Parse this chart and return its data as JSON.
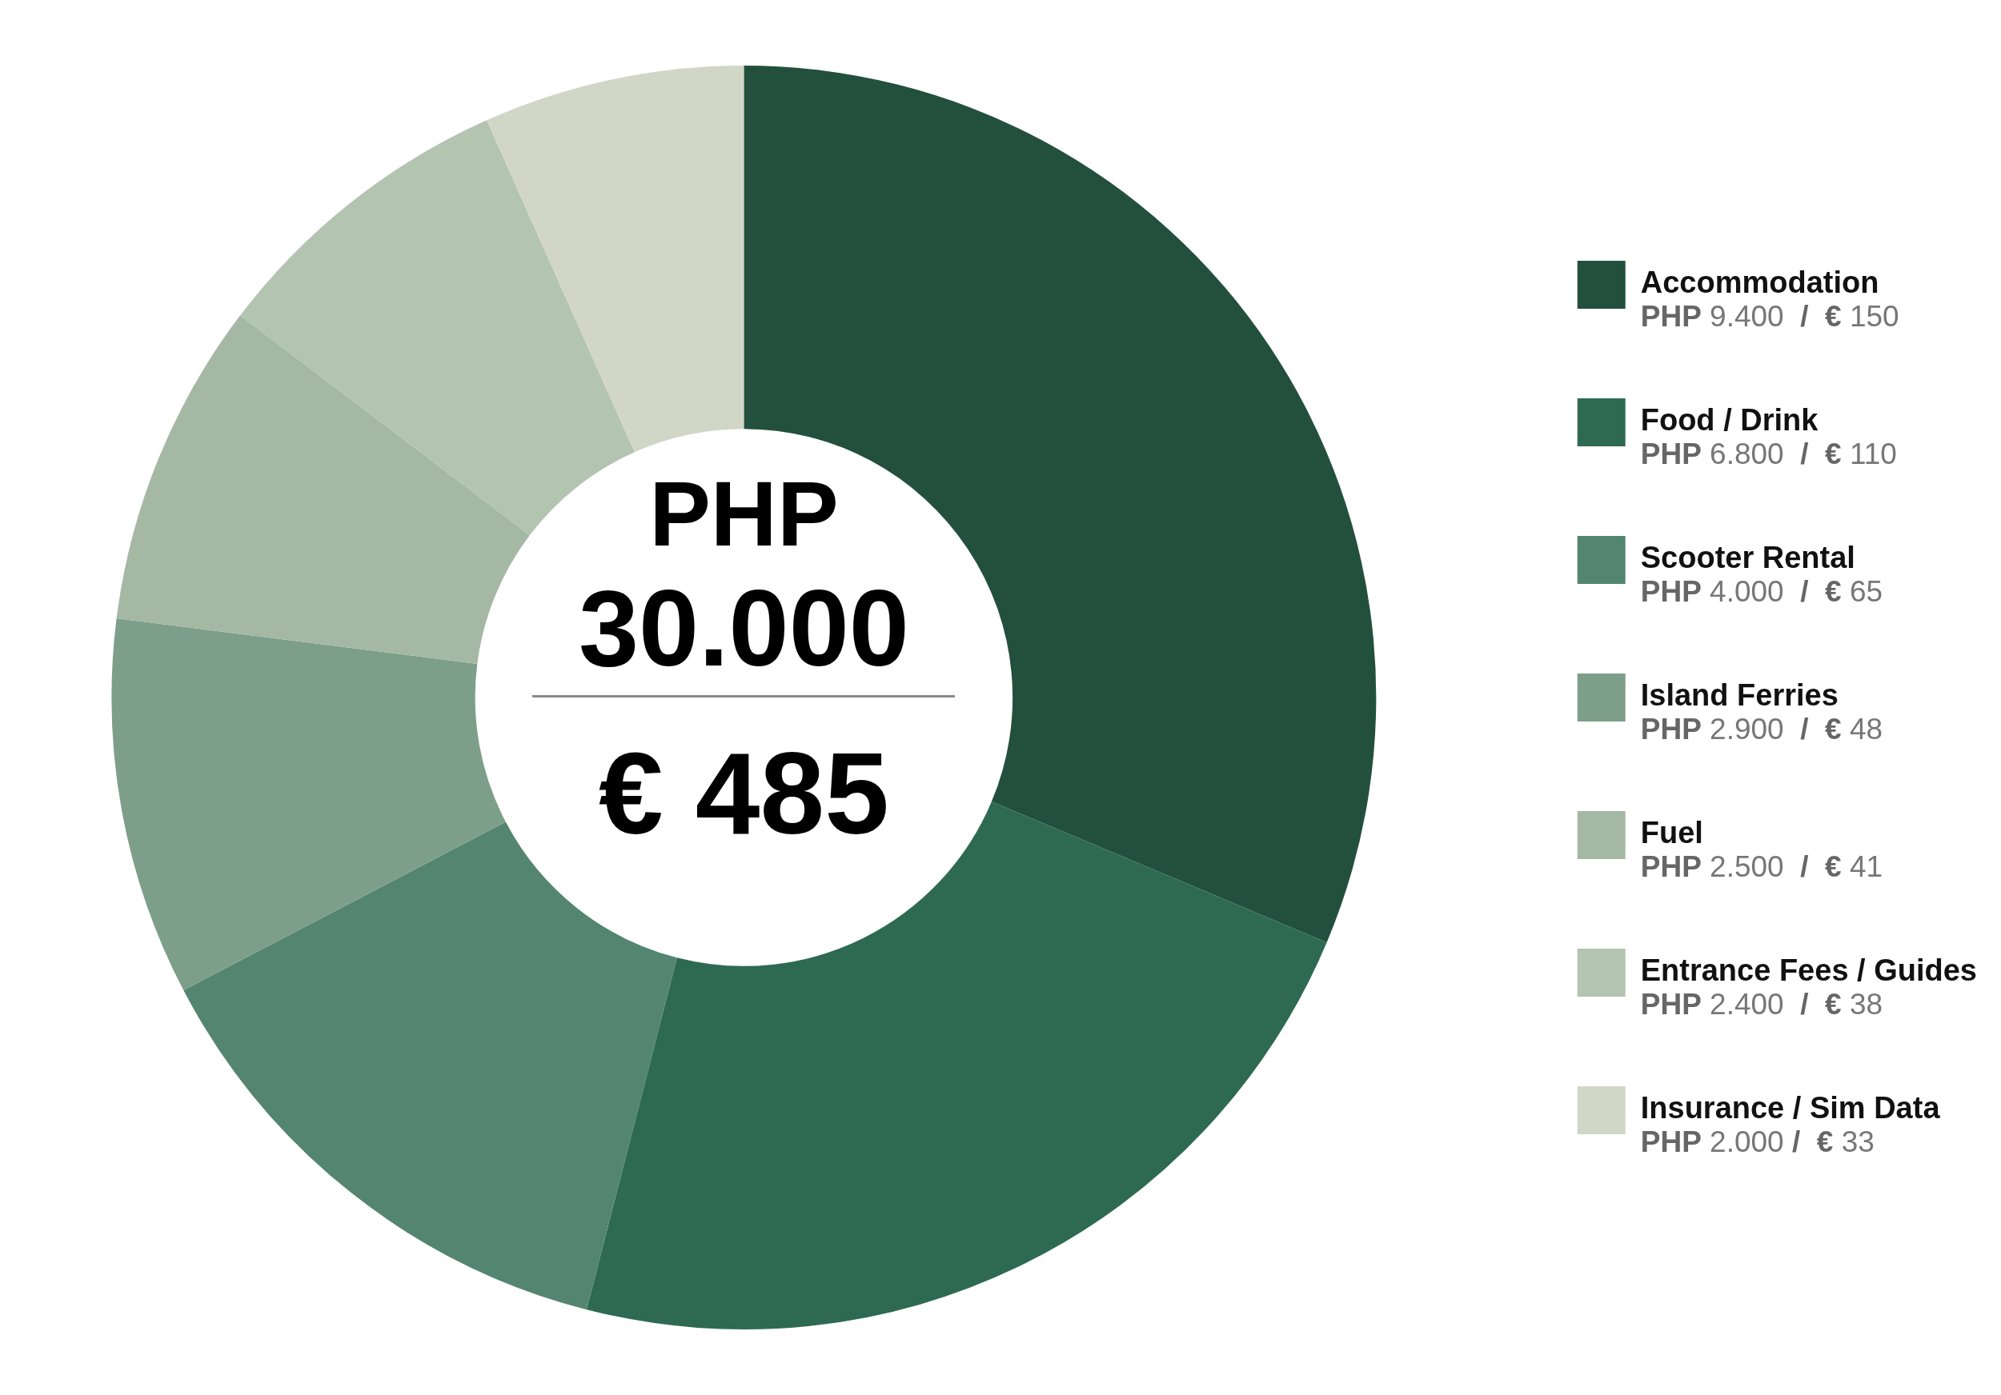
{
  "chart_data": {
    "type": "donut",
    "categories": [
      "Accommodation",
      "Food / Drink",
      "Scooter Rental",
      "Island Ferries",
      "Fuel",
      "Entrance Fees / Guides",
      "Insurance / Sim Data"
    ],
    "values": [
      9400,
      6800,
      4000,
      2900,
      2500,
      2400,
      2000
    ],
    "colors": [
      "#23503e",
      "#2e6a52",
      "#548570",
      "#7d9f8a",
      "#a5b8a4",
      "#b3c4b1",
      "#d2d6c6"
    ],
    "value_labels": [
      "PHP 9.400  /  € 150",
      "PHP 6.800  /  € 110",
      "PHP 4.000  /  € 65",
      "PHP 2.900  /  € 48",
      "PHP 2.500  /  € 41",
      "PHP 2.400  /  € 38",
      "PHP 2.000 /  € 33"
    ],
    "annotations": [
      "PHP",
      "30.000",
      "€ 485"
    ],
    "legend": "right"
  }
}
